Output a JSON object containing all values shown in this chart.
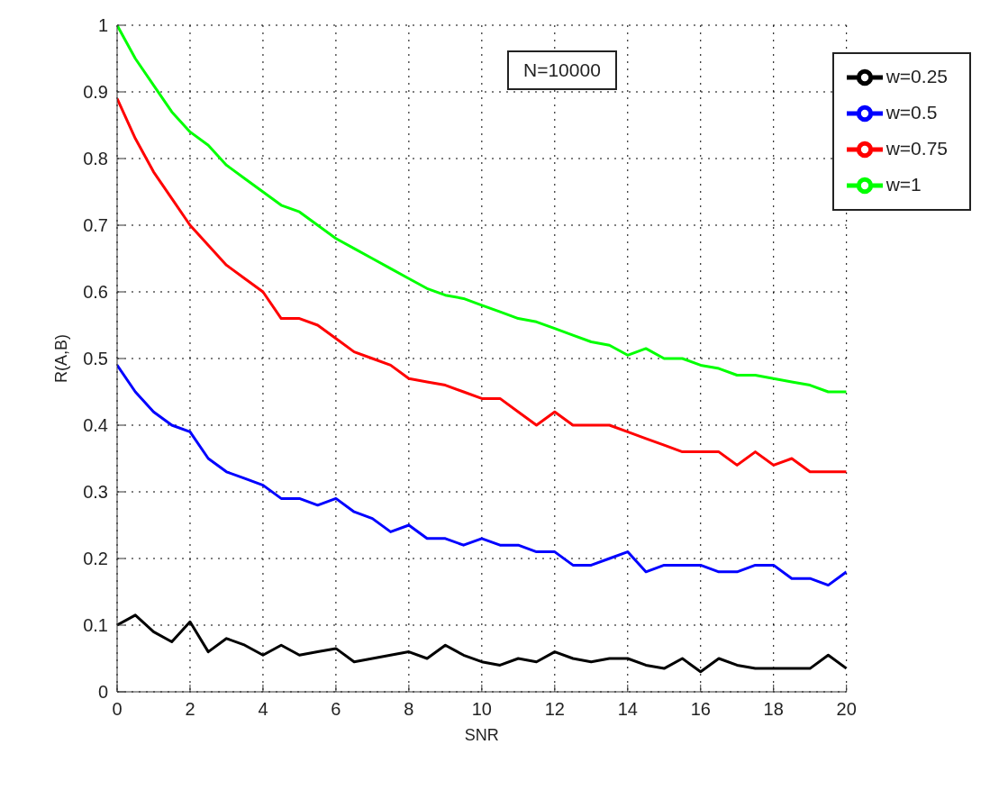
{
  "chart_data": {
    "type": "line",
    "xlabel": "SNR",
    "ylabel": "R(A,B)",
    "x": [
      0,
      0.5,
      1,
      1.5,
      2,
      2.5,
      3,
      3.5,
      4,
      4.5,
      5,
      5.5,
      6,
      6.5,
      7,
      7.5,
      8,
      8.5,
      9,
      9.5,
      10,
      10.5,
      11,
      11.5,
      12,
      12.5,
      13,
      13.5,
      14,
      14.5,
      15,
      15.5,
      16,
      16.5,
      17,
      17.5,
      18,
      18.5,
      19,
      19.5,
      20
    ],
    "series": [
      {
        "name": "w=0.25",
        "color": "#000000",
        "values": [
          0.1,
          0.115,
          0.09,
          0.075,
          0.105,
          0.06,
          0.08,
          0.07,
          0.055,
          0.07,
          0.055,
          0.06,
          0.065,
          0.045,
          0.05,
          0.055,
          0.06,
          0.05,
          0.07,
          0.055,
          0.045,
          0.04,
          0.05,
          0.045,
          0.06,
          0.05,
          0.045,
          0.05,
          0.05,
          0.04,
          0.035,
          0.05,
          0.03,
          0.05,
          0.04,
          0.035,
          0.035,
          0.035,
          0.035,
          0.055,
          0.035
        ]
      },
      {
        "name": "w=0.5",
        "color": "#0000ff",
        "values": [
          0.49,
          0.45,
          0.42,
          0.4,
          0.39,
          0.35,
          0.33,
          0.32,
          0.31,
          0.29,
          0.29,
          0.28,
          0.29,
          0.27,
          0.26,
          0.24,
          0.25,
          0.23,
          0.23,
          0.22,
          0.23,
          0.22,
          0.22,
          0.21,
          0.21,
          0.19,
          0.19,
          0.2,
          0.21,
          0.18,
          0.19,
          0.19,
          0.19,
          0.18,
          0.18,
          0.19,
          0.19,
          0.17,
          0.17,
          0.16,
          0.18
        ]
      },
      {
        "name": "w=0.75",
        "color": "#ff0000",
        "values": [
          0.89,
          0.83,
          0.78,
          0.74,
          0.7,
          0.67,
          0.64,
          0.62,
          0.6,
          0.56,
          0.56,
          0.55,
          0.53,
          0.51,
          0.5,
          0.49,
          0.47,
          0.465,
          0.46,
          0.45,
          0.44,
          0.44,
          0.42,
          0.4,
          0.42,
          0.4,
          0.4,
          0.4,
          0.39,
          0.38,
          0.37,
          0.36,
          0.36,
          0.36,
          0.34,
          0.36,
          0.34,
          0.35,
          0.33,
          0.33,
          0.33
        ]
      },
      {
        "name": "w=1",
        "color": "#00ff00",
        "values": [
          1.0,
          0.95,
          0.91,
          0.87,
          0.84,
          0.82,
          0.79,
          0.77,
          0.75,
          0.73,
          0.72,
          0.7,
          0.68,
          0.665,
          0.65,
          0.635,
          0.62,
          0.605,
          0.595,
          0.59,
          0.58,
          0.57,
          0.56,
          0.555,
          0.545,
          0.535,
          0.525,
          0.52,
          0.505,
          0.515,
          0.5,
          0.5,
          0.49,
          0.485,
          0.475,
          0.475,
          0.47,
          0.465,
          0.46,
          0.45,
          0.45
        ]
      }
    ],
    "xlim": [
      0,
      20
    ],
    "xticks": [
      0,
      2,
      4,
      6,
      8,
      10,
      12,
      14,
      16,
      18,
      20
    ],
    "ylim": [
      0,
      1
    ],
    "yticks": [
      0,
      0.1,
      0.2,
      0.3,
      0.4,
      0.5,
      0.6,
      0.7,
      0.8,
      0.9,
      1
    ],
    "annotations": [
      "N=10000"
    ],
    "grid": true,
    "legend": "top right",
    "marker": "none",
    "line_style": "solid"
  }
}
